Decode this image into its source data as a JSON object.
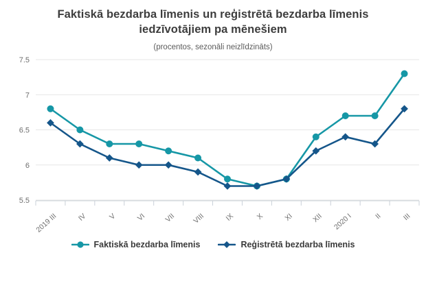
{
  "title": "Faktiskā bezdarba līmenis un reģistrētā bezdarba līmenis iedzīvotājiem pa mēnešiem",
  "subtitle": "(procentos, sezonāli neizlīdzināts)",
  "chart_data": {
    "type": "line",
    "categories": [
      "2019 III",
      "IV",
      "V",
      "VI",
      "VII",
      "VIII",
      "IX",
      "X",
      "XI",
      "XII",
      "2020 I",
      "II",
      "III"
    ],
    "series": [
      {
        "name": "Faktiskā bezdarba līmenis",
        "marker": "circle",
        "color": "#1697a6",
        "values": [
          6.8,
          6.5,
          6.3,
          6.3,
          6.2,
          6.1,
          5.8,
          5.7,
          5.8,
          6.4,
          6.7,
          6.7,
          7.3
        ]
      },
      {
        "name": "Reģistrētā bezdarba līmenis",
        "marker": "diamond",
        "color": "#15568a",
        "values": [
          6.6,
          6.3,
          6.1,
          6.0,
          6.0,
          5.9,
          5.7,
          5.7,
          5.8,
          6.2,
          6.4,
          6.3,
          6.8
        ]
      }
    ],
    "ylim": [
      5.5,
      7.5
    ],
    "yticks": [
      5.5,
      6,
      6.5,
      7,
      7.5
    ],
    "grid": true,
    "legend_position": "bottom"
  },
  "style_colors": {
    "grid": "#e6e6e6",
    "axis": "#c9d0d8",
    "tick_label": "#6e6e6e"
  }
}
